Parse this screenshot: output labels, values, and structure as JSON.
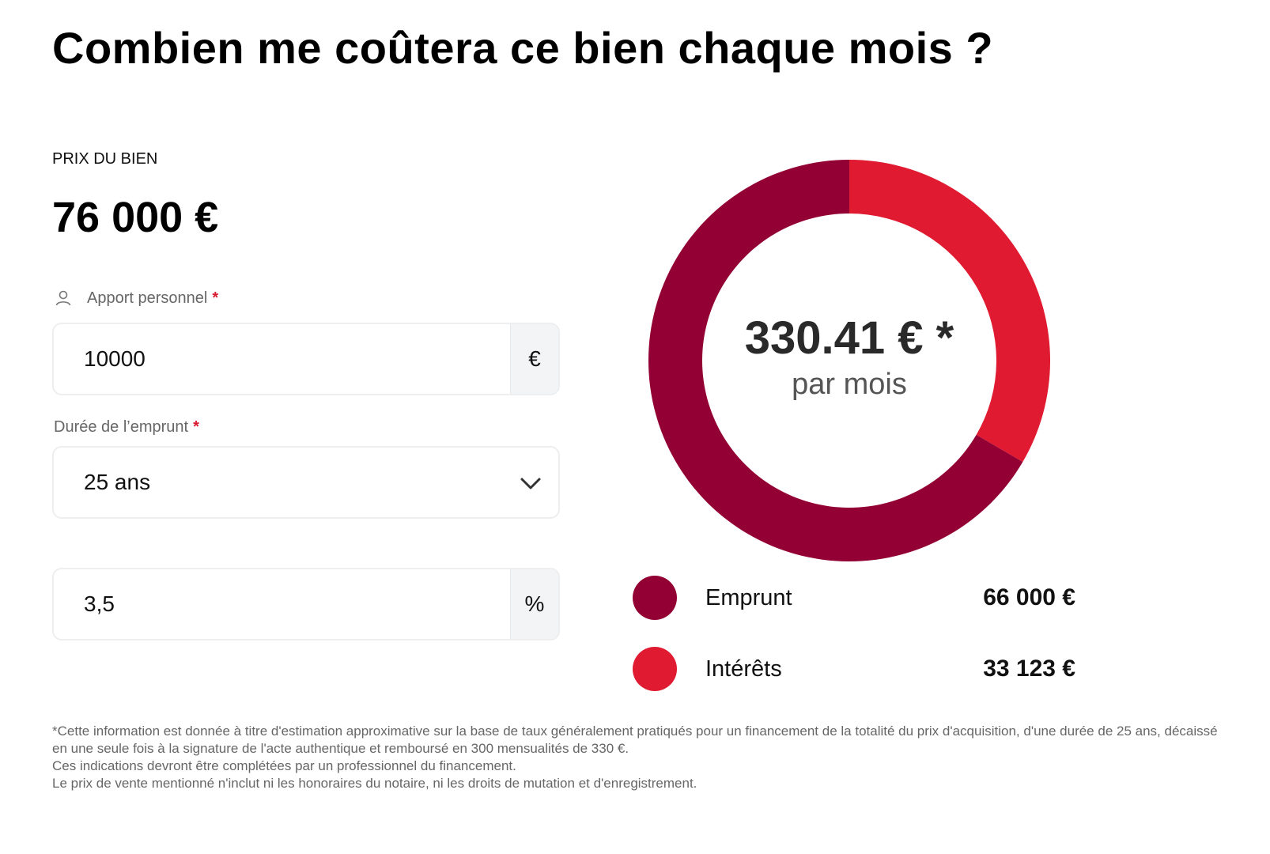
{
  "title": "Combien me coûtera ce bien chaque mois ?",
  "price": {
    "label": "PRIX DU BIEN",
    "value": "76 000 €"
  },
  "apport": {
    "label": "Apport personnel",
    "required": "*",
    "value": "10000",
    "unit": "€",
    "icon": "user-icon"
  },
  "duree": {
    "label": "Durée de l’emprunt",
    "required": "*",
    "selected": "25 ans",
    "icon": "chevron-down-icon"
  },
  "taux": {
    "value": "3,5",
    "unit": "%"
  },
  "summary": {
    "monthly": "330.41 € *",
    "per_month": "par mois"
  },
  "legend": [
    {
      "label": "Emprunt",
      "amount": "66 000 €",
      "color": "#930033"
    },
    {
      "label": "Intérêts",
      "amount": "33 123 €",
      "color": "#e01a30"
    }
  ],
  "chart_data": {
    "type": "pie",
    "categories": [
      "Emprunt",
      "Intérêts"
    ],
    "values": [
      66000,
      33123
    ],
    "colors": [
      "#930033",
      "#e01a30"
    ]
  },
  "disclaimer": [
    "*Cette information est donnée à titre d'estimation approximative sur la base de taux généralement pratiqués pour un financement de la totalité du prix d'acquisition, d'une durée de 25 ans, décaissé en une seule fois à la signature de l'acte authentique et remboursé en 300 mensualités de 330 €.",
    "Ces indications devront être complétées par un professionnel du financement.",
    "Le prix de vente mentionné n'inclut ni les honoraires du notaire, ni les droits de mutation et d'enregistrement."
  ]
}
